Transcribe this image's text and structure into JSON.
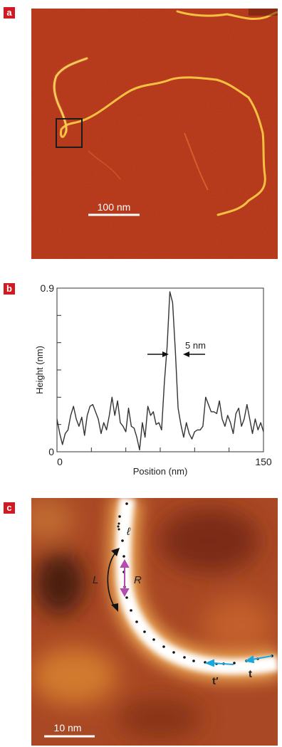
{
  "panels": [
    {
      "label": "a",
      "scale_bar": "100 nm"
    },
    {
      "label": "b",
      "annotation": "5 nm"
    },
    {
      "label": "c",
      "scale_bar": "10 nm",
      "symbols": {
        "ell": "ℓ",
        "L": "L",
        "R": "R",
        "t_prime": "t′",
        "t": "t"
      }
    }
  ],
  "chart_data": {
    "type": "line",
    "xlabel": "Position (nm)",
    "ylabel": "Height (nm)",
    "xlim": [
      0,
      150
    ],
    "ylim": [
      0,
      0.9
    ],
    "x_ticks": [
      "0",
      "150"
    ],
    "y_ticks": [
      "0",
      "0.9"
    ],
    "grid": false,
    "series": [
      {
        "x": [
          0,
          2,
          4,
          6,
          8,
          10,
          12,
          14,
          16,
          18,
          20,
          22,
          24,
          26,
          28,
          30,
          32,
          34,
          36,
          38,
          40,
          42,
          44,
          46,
          48,
          50,
          52,
          54,
          56,
          58,
          60,
          62,
          64,
          66,
          68,
          70,
          72,
          74,
          76,
          78,
          80,
          82,
          84,
          86,
          88,
          90,
          92,
          94,
          96,
          98,
          100,
          102,
          104,
          106,
          108,
          110,
          112,
          114,
          116,
          118,
          120,
          122,
          124,
          126,
          128,
          130,
          132,
          134,
          136,
          138,
          140,
          142,
          144,
          146,
          148,
          150
        ],
        "y": [
          0.18,
          0.1,
          0.04,
          0.1,
          0.12,
          0.2,
          0.25,
          0.18,
          0.14,
          0.19,
          0.09,
          0.2,
          0.25,
          0.26,
          0.22,
          0.18,
          0.1,
          0.16,
          0.12,
          0.2,
          0.3,
          0.2,
          0.28,
          0.16,
          0.14,
          0.11,
          0.24,
          0.14,
          0.13,
          0.08,
          0.01,
          0.16,
          0.08,
          0.25,
          0.2,
          0.22,
          0.15,
          0.16,
          0.12,
          0.38,
          0.58,
          0.88,
          0.82,
          0.55,
          0.24,
          0.15,
          0.08,
          0.16,
          0.1,
          0.07,
          0.11,
          0.12,
          0.12,
          0.14,
          0.3,
          0.26,
          0.22,
          0.22,
          0.21,
          0.28,
          0.18,
          0.14,
          0.2,
          0.16,
          0.1,
          0.21,
          0.24,
          0.14,
          0.18,
          0.26,
          0.18,
          0.1,
          0.18,
          0.12,
          0.16,
          0.11
        ]
      }
    ]
  },
  "colors": {
    "label_bg": "#d01920",
    "afm_bg": "#b8341a",
    "strand": "#f7c040",
    "arrow_cyan": "#18a8e0",
    "arrow_magenta": "#b44cb0"
  }
}
